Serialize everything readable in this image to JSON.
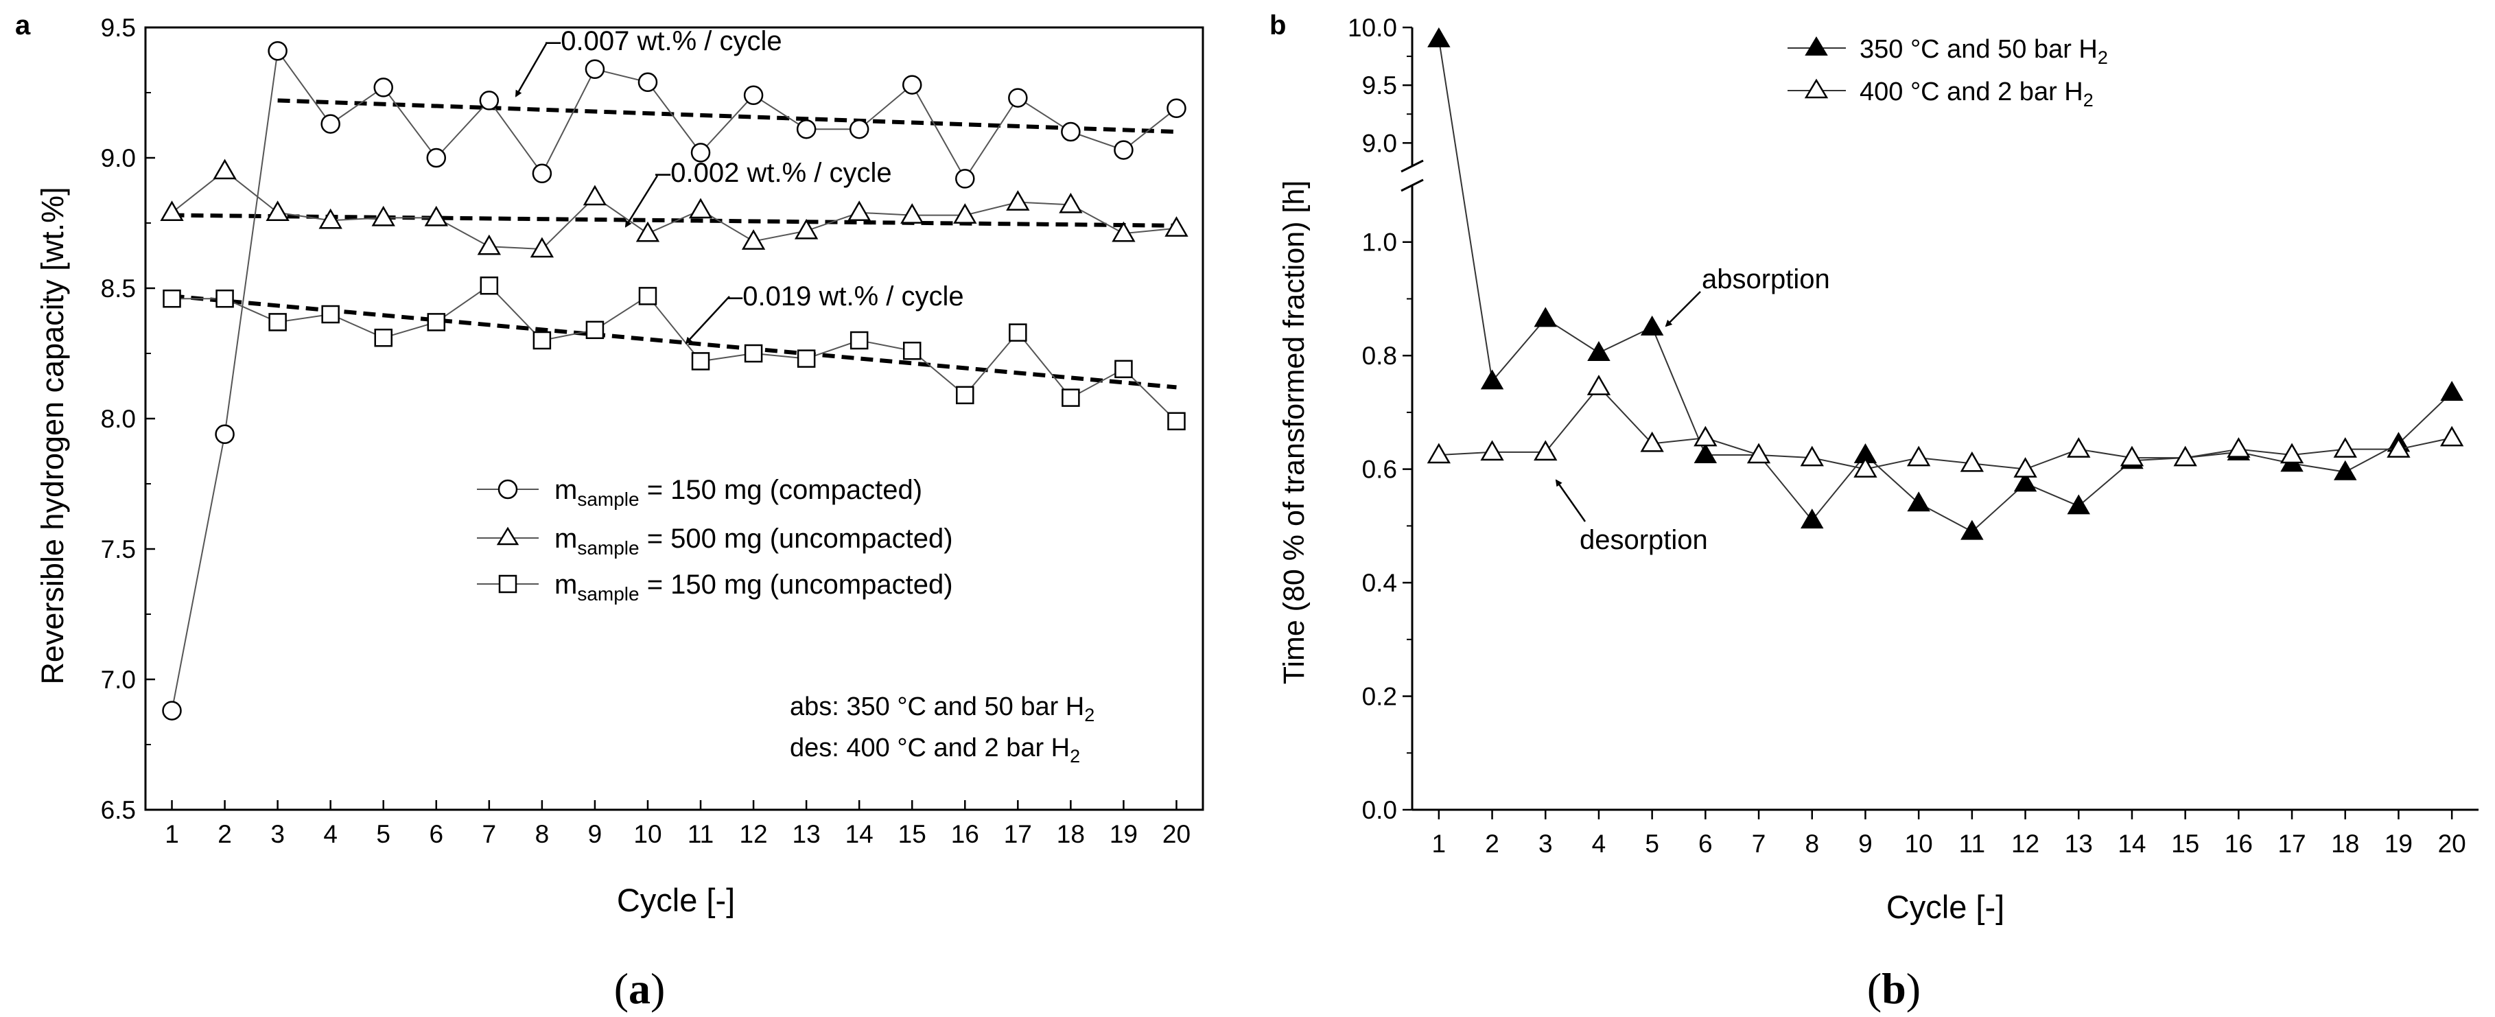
{
  "panels": {
    "a": {
      "panel_label": "a",
      "caption_open": "(",
      "caption_letter": "a",
      "caption_close": ")",
      "abs_condition": {
        "text": "abs: 350 °C and 50 bar H",
        "sub": "2"
      },
      "des_condition": {
        "text": "des: 400 °C and 2 bar H",
        "sub": "2"
      },
      "legend_prefix": "m",
      "legend_sub": "sample"
    },
    "b": {
      "panel_label": "b",
      "caption_open": "(",
      "caption_letter": "b",
      "caption_close": ")",
      "absorption_label": "absorption",
      "desorption_label": "desorption"
    }
  },
  "chart_data": [
    {
      "id": "a",
      "type": "line",
      "xlabel": "Cycle [-]",
      "ylabel": "Reversible hydrogen capacity [wt.%]",
      "xlim": [
        0.5,
        20.5
      ],
      "ylim": [
        6.5,
        9.5
      ],
      "xticks": [
        1,
        2,
        3,
        4,
        5,
        6,
        7,
        8,
        9,
        10,
        11,
        12,
        13,
        14,
        15,
        16,
        17,
        18,
        19,
        20
      ],
      "yticks": [
        6.5,
        7.0,
        7.5,
        8.0,
        8.5,
        9.0,
        9.5
      ],
      "ytick_labels": [
        "6.5",
        "7.0",
        "7.5",
        "8.0",
        "8.5",
        "9.0",
        "9.5"
      ],
      "series": [
        {
          "name": "150 mg (compacted)",
          "legend_rest": " = 150 mg (compacted)",
          "marker": "circle",
          "x": [
            1,
            2,
            3,
            4,
            5,
            6,
            7,
            8,
            9,
            10,
            11,
            12,
            13,
            14,
            15,
            16,
            17,
            18,
            19,
            20
          ],
          "values": [
            6.88,
            7.94,
            9.41,
            9.13,
            9.27,
            9.0,
            9.22,
            8.94,
            9.34,
            9.29,
            9.02,
            9.24,
            9.11,
            9.11,
            9.28,
            8.92,
            9.23,
            9.1,
            9.03,
            9.19
          ]
        },
        {
          "name": "500 mg (uncompacted)",
          "legend_rest": " = 500 mg (uncompacted)",
          "marker": "triangle",
          "x": [
            1,
            2,
            3,
            4,
            5,
            6,
            7,
            8,
            9,
            10,
            11,
            12,
            13,
            14,
            15,
            16,
            17,
            18,
            19,
            20
          ],
          "values": [
            8.79,
            8.95,
            8.79,
            8.76,
            8.77,
            8.77,
            8.66,
            8.65,
            8.85,
            8.71,
            8.8,
            8.68,
            8.72,
            8.79,
            8.78,
            8.78,
            8.83,
            8.82,
            8.71,
            8.73
          ]
        },
        {
          "name": "150 mg (uncompacted)",
          "legend_rest": " = 150 mg (uncompacted)",
          "marker": "square",
          "x": [
            1,
            2,
            3,
            4,
            5,
            6,
            7,
            8,
            9,
            10,
            11,
            12,
            13,
            14,
            15,
            16,
            17,
            18,
            19,
            20
          ],
          "values": [
            8.46,
            8.46,
            8.37,
            8.4,
            8.31,
            8.37,
            8.51,
            8.3,
            8.34,
            8.47,
            8.22,
            8.25,
            8.23,
            8.3,
            8.26,
            8.09,
            8.33,
            8.08,
            8.19,
            7.99
          ]
        }
      ],
      "trendlines": [
        {
          "label": "–0.007 wt.% / cycle",
          "x": [
            3,
            20
          ],
          "y": [
            9.22,
            9.1
          ]
        },
        {
          "label": "–0.002 wt.% / cycle",
          "x": [
            1,
            20
          ],
          "y": [
            8.78,
            8.74
          ]
        },
        {
          "label": "–0.019 wt.% / cycle",
          "x": [
            1,
            20
          ],
          "y": [
            8.47,
            8.12
          ]
        }
      ]
    },
    {
      "id": "b",
      "type": "line",
      "xlabel": "Cycle [-]",
      "ylabel": "Time (80 % of transformed fraction) [h]",
      "xlim": [
        0.5,
        20.5
      ],
      "y_axis_break": {
        "lower": [
          0.0,
          1.1
        ],
        "upper": [
          8.8,
          10.0
        ]
      },
      "xticks": [
        1,
        2,
        3,
        4,
        5,
        6,
        7,
        8,
        9,
        10,
        11,
        12,
        13,
        14,
        15,
        16,
        17,
        18,
        19,
        20
      ],
      "yticks": [
        0.0,
        0.2,
        0.4,
        0.6,
        0.8,
        1.0,
        9.0,
        9.5,
        10.0
      ],
      "ytick_labels": [
        "0.0",
        "0.2",
        "0.4",
        "0.6",
        "0.8",
        "1.0",
        "9.0",
        "9.5",
        "10.0"
      ],
      "series": [
        {
          "name": "350 °C and 50 bar H",
          "sub": "2",
          "marker": "filled-triangle",
          "x": [
            1,
            2,
            3,
            4,
            5,
            6,
            7,
            8,
            9,
            10,
            11,
            12,
            13,
            14,
            15,
            16,
            17,
            18,
            19,
            20
          ],
          "values": [
            9.9,
            0.755,
            0.865,
            0.805,
            0.85,
            0.625,
            0.625,
            0.51,
            0.625,
            0.54,
            0.49,
            0.575,
            0.535,
            0.615,
            0.62,
            0.63,
            0.61,
            0.595,
            0.645,
            0.735
          ]
        },
        {
          "name": "400 °C and 2 bar H",
          "sub": "2",
          "marker": "open-triangle",
          "x": [
            1,
            2,
            3,
            4,
            5,
            6,
            7,
            8,
            9,
            10,
            11,
            12,
            13,
            14,
            15,
            16,
            17,
            18,
            19,
            20
          ],
          "values": [
            0.625,
            0.63,
            0.63,
            0.745,
            0.645,
            0.655,
            0.625,
            0.62,
            0.6,
            0.62,
            0.61,
            0.6,
            0.635,
            0.62,
            0.62,
            0.635,
            0.625,
            0.635,
            0.635,
            0.655
          ]
        }
      ]
    }
  ]
}
